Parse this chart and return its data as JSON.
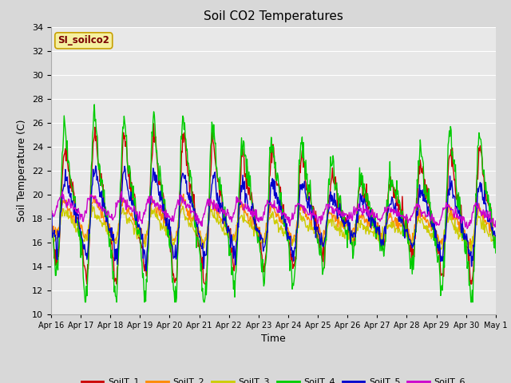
{
  "title": "Soil CO2 Temperatures",
  "xlabel": "Time",
  "ylabel": "Soil Temperature (C)",
  "ylim": [
    10,
    34
  ],
  "yticks": [
    10,
    12,
    14,
    16,
    18,
    20,
    22,
    24,
    26,
    28,
    30,
    32,
    34
  ],
  "x_labels": [
    "Apr 16",
    "Apr 17",
    "Apr 18",
    "Apr 19",
    "Apr 20",
    "Apr 21",
    "Apr 22",
    "Apr 23",
    "Apr 24",
    "Apr 25",
    "Apr 26",
    "Apr 27",
    "Apr 28",
    "Apr 29",
    "Apr 30",
    "May 1"
  ],
  "station_label": "SI_soilco2",
  "colors": {
    "SoilT_1": "#cc0000",
    "SoilT_2": "#ff8800",
    "SoilT_3": "#cccc00",
    "SoilT_4": "#00cc00",
    "SoilT_5": "#0000cc",
    "SoilT_6": "#cc00cc"
  },
  "bg_color": "#e8e8e8",
  "grid_color": "#ffffff",
  "title_fontsize": 11,
  "label_fontsize": 9,
  "tick_fontsize": 8,
  "n_days": 15,
  "points_per_day": 48,
  "figsize": [
    6.4,
    4.8
  ],
  "dpi": 100
}
